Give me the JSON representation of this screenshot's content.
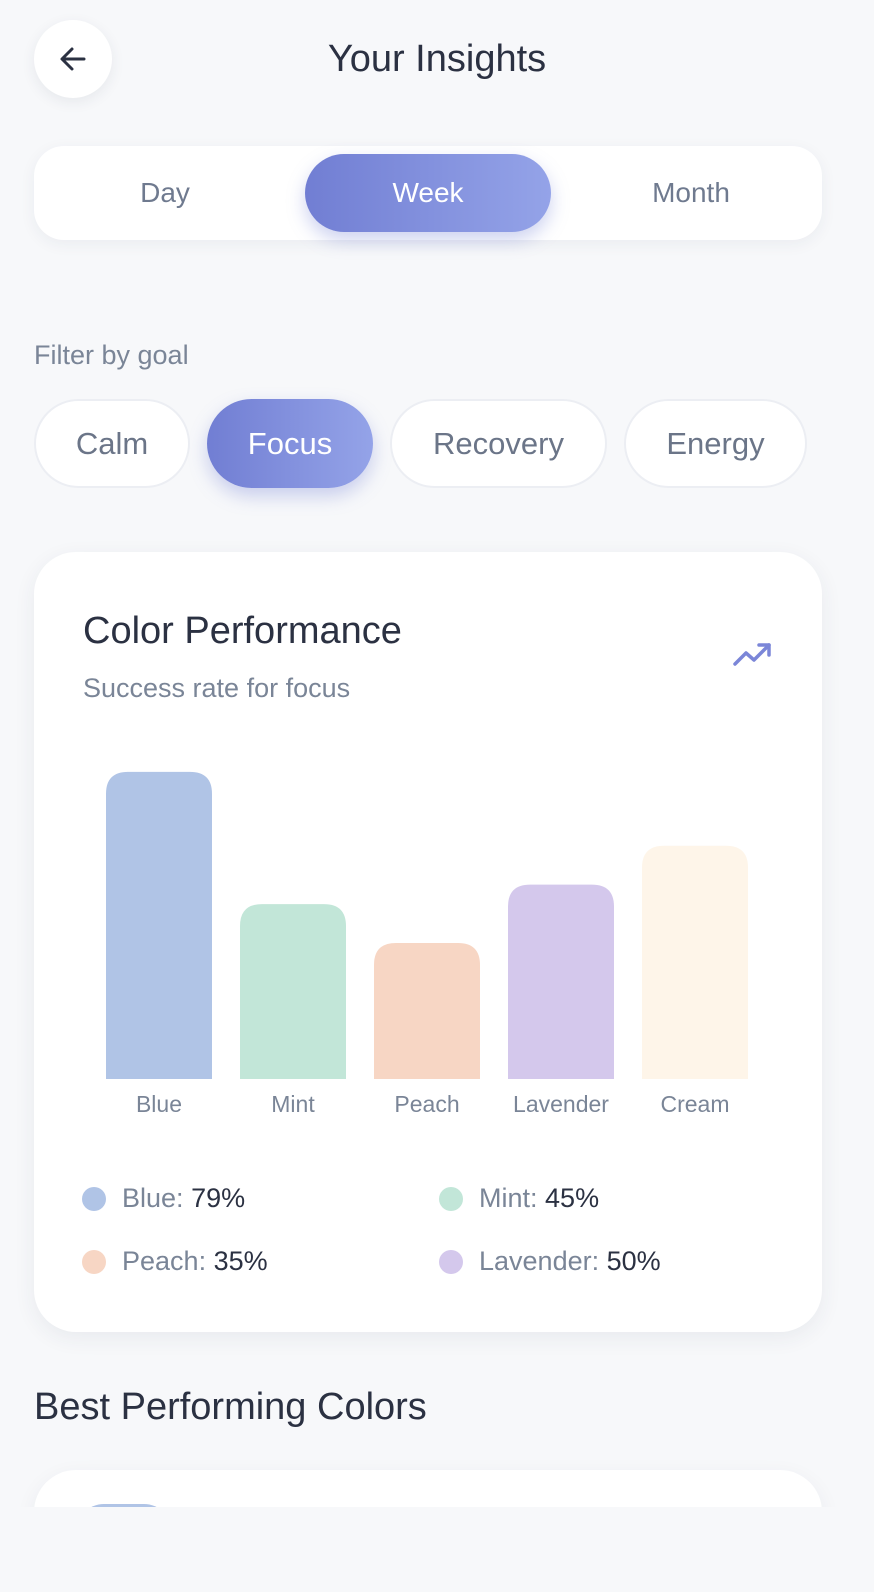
{
  "header": {
    "title": "Your Insights",
    "back_icon": "arrow-left-icon"
  },
  "period_tabs": {
    "items": [
      "Day",
      "Week",
      "Month"
    ],
    "selected": "Week"
  },
  "filter": {
    "label": "Filter by goal",
    "chips": [
      "Calm",
      "Focus",
      "Recovery",
      "Energy"
    ],
    "selected": "Focus"
  },
  "card": {
    "title": "Color Performance",
    "subtitle": "Success rate for focus",
    "icon": "trending-up-icon"
  },
  "chart_data": {
    "type": "bar",
    "categories": [
      "Blue",
      "Mint",
      "Peach",
      "Lavender",
      "Cream"
    ],
    "values": [
      79,
      45,
      35,
      50,
      60
    ],
    "colors": [
      "#b0c4e6",
      "#c2e6d8",
      "#f7d6c4",
      "#d4c8ec",
      "#fef5e9"
    ],
    "ylim": [
      0,
      80
    ]
  },
  "legend": [
    {
      "name": "Blue",
      "value": "79%",
      "color": "#b0c4e6"
    },
    {
      "name": "Mint",
      "value": "45%",
      "color": "#c2e6d8"
    },
    {
      "name": "Peach",
      "value": "35%",
      "color": "#f7d6c4"
    },
    {
      "name": "Lavender",
      "value": "50%",
      "color": "#d4c8ec"
    }
  ],
  "section": {
    "title": "Best Performing Colors"
  },
  "accent_color": "#7b86d8"
}
